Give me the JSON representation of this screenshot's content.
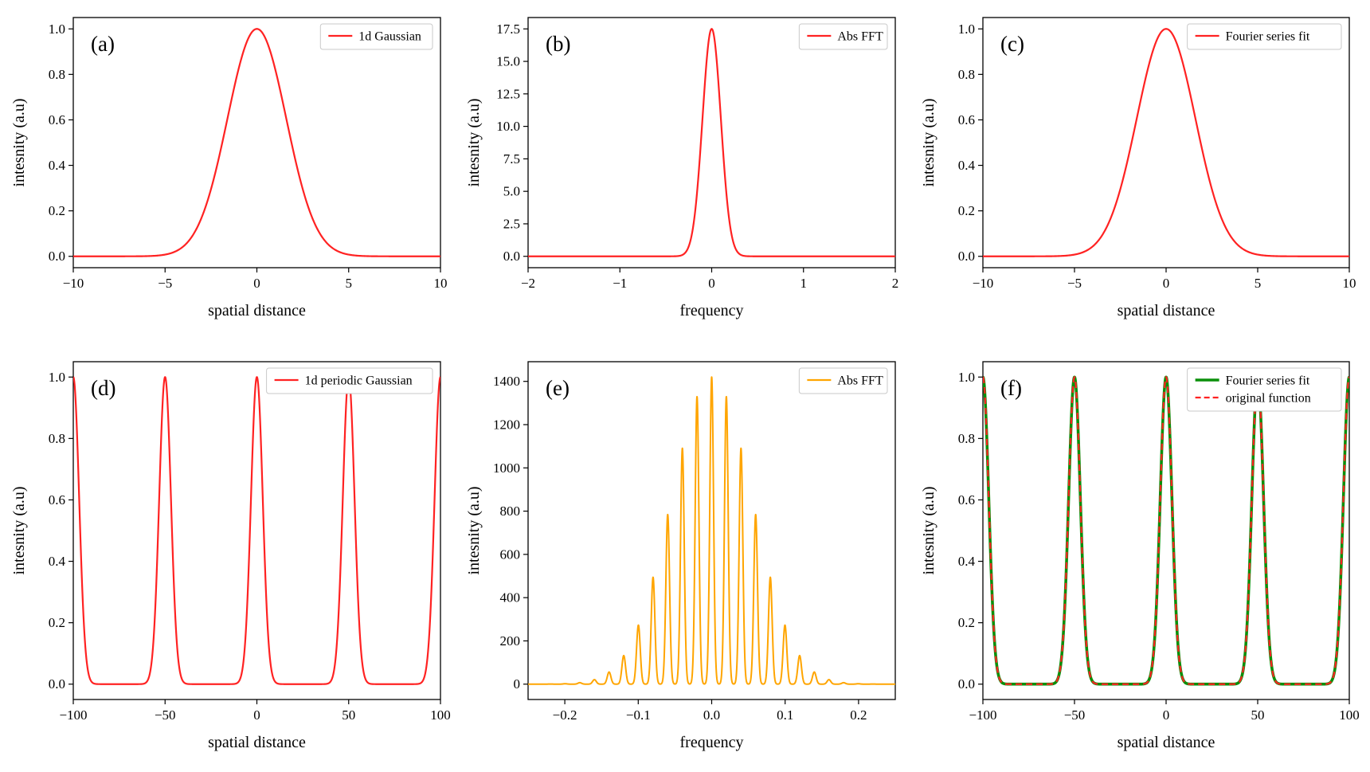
{
  "figure": {
    "background": "#ffffff",
    "axis_color": "#000000",
    "text_color": "#000000",
    "layout": "2 rows x 3 columns of line plots"
  },
  "chart_data": [
    {
      "id": "a",
      "type": "line",
      "panel_label": "(a)",
      "xlabel": "spatial distance",
      "ylabel": "intesnity (a.u)",
      "xlim": [
        -10,
        10
      ],
      "ylim": [
        -0.05,
        1.05
      ],
      "grid": false,
      "legend_position": "upper-right",
      "xticks": {
        "values": [
          -10,
          -5,
          0,
          5,
          10
        ],
        "labels": [
          "−10",
          "−5",
          "0",
          "5",
          "10"
        ]
      },
      "yticks": {
        "values": [
          0,
          0.2,
          0.4,
          0.6,
          0.8,
          1.0
        ],
        "labels": [
          "0.0",
          "0.2",
          "0.4",
          "0.6",
          "0.8",
          "1.0"
        ]
      },
      "series": [
        {
          "label": "1d Gaussian",
          "color": "#ff2222",
          "linewidth": 2.2,
          "dash": "solid",
          "fn": "gaussian",
          "params": {
            "amp": 1.0,
            "mu": 0,
            "sigma": 1.6
          },
          "samples": 500,
          "peak": {
            "x": 0,
            "y": 1.0
          }
        }
      ]
    },
    {
      "id": "b",
      "type": "line",
      "panel_label": "(b)",
      "xlabel": "frequency",
      "ylabel": "intesnity (a.u)",
      "xlim": [
        -2,
        2
      ],
      "ylim": [
        -0.875,
        18.375
      ],
      "grid": false,
      "legend_position": "upper-right",
      "xticks": {
        "values": [
          -2,
          -1,
          0,
          1,
          2
        ],
        "labels": [
          "−2",
          "−1",
          "0",
          "1",
          "2"
        ]
      },
      "yticks": {
        "values": [
          0,
          2.5,
          5,
          7.5,
          10,
          12.5,
          15,
          17.5
        ],
        "labels": [
          "0.0",
          "2.5",
          "5.0",
          "7.5",
          "10.0",
          "12.5",
          "15.0",
          "17.5"
        ]
      },
      "series": [
        {
          "label": "Abs FFT",
          "color": "#ff2222",
          "linewidth": 2.2,
          "dash": "solid",
          "fn": "gaussian",
          "params": {
            "amp": 17.5,
            "mu": 0,
            "sigma": 0.1
          },
          "samples": 900,
          "peak": {
            "x": 0,
            "y": 17.5
          }
        }
      ]
    },
    {
      "id": "c",
      "type": "line",
      "panel_label": "(c)",
      "xlabel": "spatial distance",
      "ylabel": "intesnity (a.u)",
      "xlim": [
        -10,
        10
      ],
      "ylim": [
        -0.05,
        1.05
      ],
      "grid": false,
      "legend_position": "upper-right",
      "xticks": {
        "values": [
          -10,
          -5,
          0,
          5,
          10
        ],
        "labels": [
          "−10",
          "−5",
          "0",
          "5",
          "10"
        ]
      },
      "yticks": {
        "values": [
          0,
          0.2,
          0.4,
          0.6,
          0.8,
          1.0
        ],
        "labels": [
          "0.0",
          "0.2",
          "0.4",
          "0.6",
          "0.8",
          "1.0"
        ]
      },
      "series": [
        {
          "label": "Fourier series fit",
          "color": "#ff2222",
          "linewidth": 2.2,
          "dash": "solid",
          "fn": "gaussian",
          "params": {
            "amp": 1.0,
            "mu": 0,
            "sigma": 1.6
          },
          "samples": 500,
          "peak": {
            "x": 0,
            "y": 1.0
          }
        }
      ]
    },
    {
      "id": "d",
      "type": "line",
      "panel_label": "(d)",
      "xlabel": "spatial distance",
      "ylabel": "intesnity (a.u)",
      "xlim": [
        -100,
        100
      ],
      "ylim": [
        -0.05,
        1.05
      ],
      "grid": false,
      "legend_position": "upper-right",
      "xticks": {
        "values": [
          -100,
          -50,
          0,
          50,
          100
        ],
        "labels": [
          "−100",
          "−50",
          "0",
          "50",
          "100"
        ]
      },
      "yticks": {
        "values": [
          0,
          0.2,
          0.4,
          0.6,
          0.8,
          1.0
        ],
        "labels": [
          "0.0",
          "0.2",
          "0.4",
          "0.6",
          "0.8",
          "1.0"
        ]
      },
      "series": [
        {
          "label": "1d periodic Gaussian",
          "color": "#ff2222",
          "linewidth": 2.2,
          "dash": "solid",
          "fn": "periodic_gaussian",
          "params": {
            "amp": 1.0,
            "sigma": 3.2,
            "period": 50
          },
          "samples": 3000,
          "peak_centers": [
            -100,
            -50,
            0,
            50,
            100
          ],
          "peak_height": 1.0
        }
      ]
    },
    {
      "id": "e",
      "type": "line",
      "panel_label": "(e)",
      "xlabel": "frequency",
      "ylabel": "intesnity (a.u)",
      "xlim": [
        -0.25,
        0.25
      ],
      "ylim": [
        -71,
        1491
      ],
      "grid": false,
      "legend_position": "upper-right",
      "xticks": {
        "values": [
          -0.2,
          -0.1,
          0,
          0.1,
          0.2
        ],
        "labels": [
          "−0.2",
          "−0.1",
          "0.0",
          "0.1",
          "0.2"
        ]
      },
      "yticks": {
        "values": [
          0,
          200,
          400,
          600,
          800,
          1000,
          1200,
          1400
        ],
        "labels": [
          "0",
          "200",
          "400",
          "600",
          "800",
          "1000",
          "1200",
          "1400"
        ]
      },
      "series": [
        {
          "label": "Abs FFT",
          "color": "#ffa500",
          "linewidth": 2.0,
          "dash": "solid",
          "fn": "gaussian_comb",
          "params": {
            "env_amp": 1420,
            "env_sigma": 0.055,
            "spacing": 0.02,
            "spike_sigma": 0.0025
          },
          "samples": 6000,
          "visible_peak_heights": {
            "0.00": 1420,
            "0.02": 1330,
            "0.04": 1110,
            "0.06": 800,
            "0.08": 490,
            "0.10": 270,
            "0.12": 130
          }
        }
      ]
    },
    {
      "id": "f",
      "type": "line",
      "panel_label": "(f)",
      "xlabel": "spatial distance",
      "ylabel": "intesnity (a.u)",
      "xlim": [
        -100,
        100
      ],
      "ylim": [
        -0.05,
        1.05
      ],
      "grid": false,
      "legend_position": "upper-right",
      "xticks": {
        "values": [
          -100,
          -50,
          0,
          50,
          100
        ],
        "labels": [
          "−100",
          "−50",
          "0",
          "50",
          "100"
        ]
      },
      "yticks": {
        "values": [
          0,
          0.2,
          0.4,
          0.6,
          0.8,
          1.0
        ],
        "labels": [
          "0.0",
          "0.2",
          "0.4",
          "0.6",
          "0.8",
          "1.0"
        ]
      },
      "series": [
        {
          "label": "Fourier series fit",
          "color": "#0a8f0a",
          "linewidth": 3.6,
          "dash": "solid",
          "fn": "periodic_gaussian",
          "params": {
            "amp": 1.0,
            "sigma": 3.2,
            "period": 50
          },
          "samples": 3000,
          "peak_centers": [
            -100,
            -50,
            0,
            50,
            100
          ],
          "peak_height": 1.0
        },
        {
          "label": "original function",
          "color": "#ff2222",
          "linewidth": 2.2,
          "dash": "dashed",
          "fn": "periodic_gaussian",
          "params": {
            "amp": 1.0,
            "sigma": 3.2,
            "period": 50
          },
          "samples": 3000,
          "peak_centers": [
            -100,
            -50,
            0,
            50,
            100
          ],
          "peak_height": 1.0
        }
      ]
    }
  ]
}
